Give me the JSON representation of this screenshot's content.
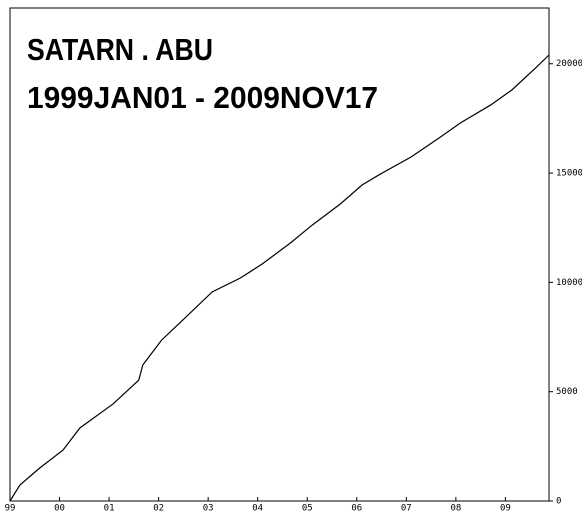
{
  "chart_data": {
    "type": "line",
    "title": "SATARN . ABU",
    "subtitle": "1999JAN01  -  2009NOV17",
    "x": [
      1999.0,
      1999.2,
      1999.6,
      2000.07,
      2000.41,
      2001.08,
      2001.6,
      2001.68,
      2002.06,
      2002.53,
      2003.08,
      2003.65,
      2004.09,
      2004.66,
      2005.1,
      2005.67,
      2006.11,
      2006.48,
      2007.1,
      2007.69,
      2008.09,
      2008.7,
      2009.13,
      2009.61,
      2009.88
    ],
    "series": [
      {
        "color": "#000000",
        "values": [
          0,
          730,
          1510,
          2330,
          3340,
          4440,
          5530,
          6220,
          7360,
          8370,
          9560,
          10200,
          10840,
          11800,
          12620,
          13590,
          14460,
          14960,
          15740,
          16650,
          17290,
          18110,
          18800,
          19810,
          20400
        ]
      }
    ],
    "xlim": [
      1999.0,
      2009.88
    ],
    "xticks": [
      {
        "value": 1999,
        "label": "99"
      },
      {
        "value": 2000,
        "label": "00"
      },
      {
        "value": 2001,
        "label": "01"
      },
      {
        "value": 2002,
        "label": "02"
      },
      {
        "value": 2003,
        "label": "03"
      },
      {
        "value": 2004,
        "label": "04"
      },
      {
        "value": 2005,
        "label": "05"
      },
      {
        "value": 2006,
        "label": "06"
      },
      {
        "value": 2007,
        "label": "07"
      },
      {
        "value": 2008,
        "label": "08"
      },
      {
        "value": 2009,
        "label": "09"
      }
    ],
    "ylim": [
      0,
      22550
    ],
    "yticks": [
      0,
      5000,
      10000,
      15000,
      20000
    ]
  }
}
